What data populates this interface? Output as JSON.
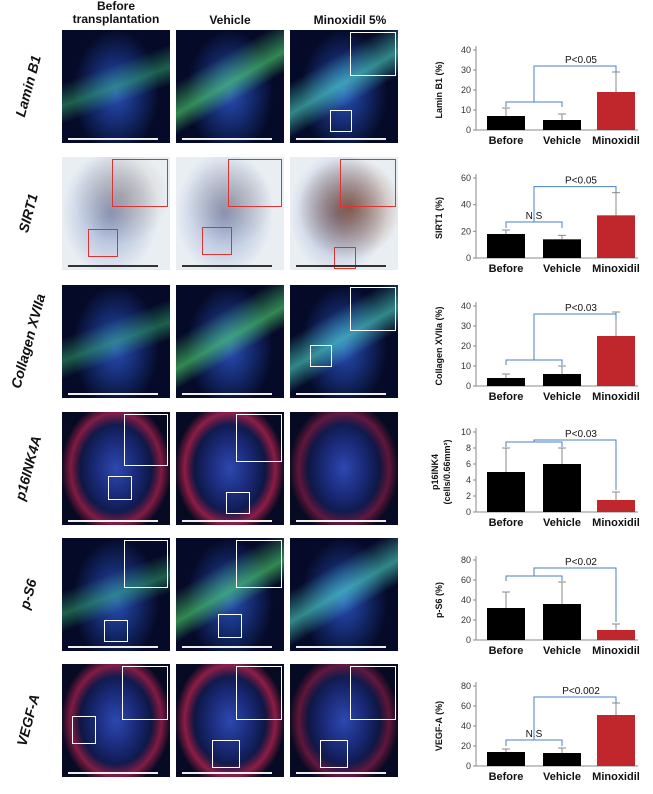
{
  "columns": [
    "Before\ntransplantation",
    "Vehicle",
    "Minoxidil 5%"
  ],
  "rows": [
    {
      "label": "Lamin B1",
      "stain": "fluor"
    },
    {
      "label": "SIRT1",
      "stain": "ihc"
    },
    {
      "label": "Collagen XVIIa",
      "stain": "fluor"
    },
    {
      "label": "p16INK4A",
      "stain": "red"
    },
    {
      "label": "p-S6",
      "stain": "fluor"
    },
    {
      "label": "VEGF-A",
      "stain": "red"
    }
  ],
  "chart_data": [
    {
      "type": "bar",
      "categories": [
        "Before",
        "Vehicle",
        "Minoxidil"
      ],
      "values": [
        7,
        5,
        19
      ],
      "errors": [
        4,
        3,
        10
      ],
      "ylabel": "Lamin B1 (%)",
      "ylim": [
        0,
        40
      ],
      "yticks": [
        0,
        10,
        20,
        30,
        40
      ],
      "annotations": [
        "P<0.05"
      ],
      "colors": [
        "#000000",
        "#000000",
        "#c0272d"
      ]
    },
    {
      "type": "bar",
      "categories": [
        "Before",
        "Vehicle",
        "Minoxidil"
      ],
      "values": [
        18,
        14,
        32
      ],
      "errors": [
        3,
        3,
        17
      ],
      "ylabel": "SIRT1 (%)",
      "ylim": [
        0,
        60
      ],
      "yticks": [
        0,
        20,
        40,
        60
      ],
      "annotations": [
        "N.S",
        "P<0.05"
      ],
      "colors": [
        "#000000",
        "#000000",
        "#c0272d"
      ]
    },
    {
      "type": "bar",
      "categories": [
        "Before",
        "Vehicle",
        "Minoxidil"
      ],
      "values": [
        4,
        6,
        25
      ],
      "errors": [
        2,
        4,
        12
      ],
      "ylabel": "Collagen XVIIa (%)",
      "ylim": [
        0,
        40
      ],
      "yticks": [
        0,
        10,
        20,
        30,
        40
      ],
      "annotations": [
        "P<0.03"
      ],
      "colors": [
        "#000000",
        "#000000",
        "#c0272d"
      ]
    },
    {
      "type": "bar",
      "categories": [
        "Before",
        "Vehicle",
        "Minoxidil"
      ],
      "values": [
        5,
        6,
        1.5
      ],
      "errors": [
        3,
        2,
        1
      ],
      "ylabel": "p16INK4 (cells/0.66mm²)",
      "ylim": [
        0,
        10
      ],
      "yticks": [
        0,
        2,
        4,
        6,
        8,
        10
      ],
      "annotations": [
        "P<0.03"
      ],
      "colors": [
        "#000000",
        "#000000",
        "#c0272d"
      ]
    },
    {
      "type": "bar",
      "categories": [
        "Before",
        "Vehicle",
        "Minoxidil"
      ],
      "values": [
        32,
        36,
        10
      ],
      "errors": [
        16,
        22,
        6
      ],
      "ylabel": "p-S6 (%)",
      "ylim": [
        0,
        80
      ],
      "yticks": [
        0,
        20,
        40,
        60,
        80
      ],
      "annotations": [
        "P<0.02"
      ],
      "colors": [
        "#000000",
        "#000000",
        "#c0272d"
      ]
    },
    {
      "type": "bar",
      "categories": [
        "Before",
        "Vehicle",
        "Minoxidil"
      ],
      "values": [
        14,
        13,
        51
      ],
      "errors": [
        3,
        5,
        12
      ],
      "ylabel": "VEGF-A (%)",
      "ylim": [
        0,
        80
      ],
      "yticks": [
        0,
        20,
        40,
        60,
        80
      ],
      "annotations": [
        "N.S",
        "P<0.002"
      ],
      "colors": [
        "#000000",
        "#000000",
        "#c0272d"
      ]
    }
  ]
}
